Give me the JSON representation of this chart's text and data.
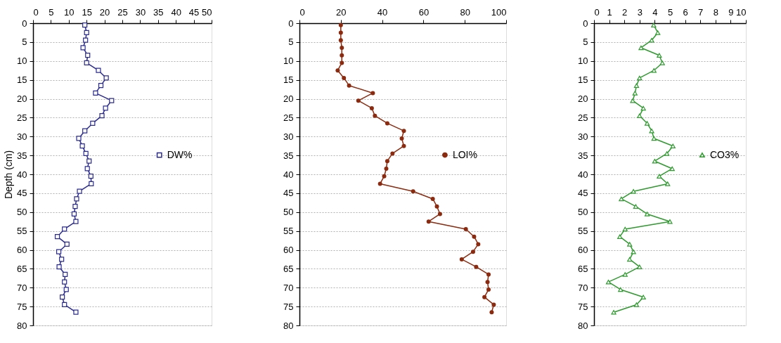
{
  "chart_data": [
    {
      "type": "line",
      "orientation": "horizontal",
      "ylabel": "Depth (cm)",
      "xlim": [
        0,
        50
      ],
      "xticks": [
        0,
        5,
        10,
        15,
        20,
        25,
        30,
        35,
        40,
        45,
        50
      ],
      "ylim": [
        80,
        0
      ],
      "yticks": [
        0,
        5,
        10,
        15,
        20,
        25,
        30,
        35,
        40,
        45,
        50,
        55,
        60,
        65,
        70,
        75,
        80
      ],
      "grid": "y",
      "legend": "right",
      "marker": "square",
      "line_style": "solid",
      "x": [
        0.5,
        2.5,
        4.5,
        6.5,
        8.5,
        10.5,
        12.5,
        14.5,
        16.5,
        18.5,
        20.5,
        22.5,
        24.5,
        26.5,
        28.5,
        30.5,
        32.5,
        34.5,
        36.5,
        38.5,
        40.5,
        42.5,
        44.5,
        46.5,
        48.5,
        50.5,
        52.5,
        54.5,
        56.5,
        58.5,
        60.5,
        62.5,
        64.5,
        66.5,
        68.5,
        70.5,
        72.5,
        74.5,
        76.5
      ],
      "series": [
        {
          "name": "DW%",
          "color": "#2b2b8f",
          "values": [
            14.5,
            15,
            14.7,
            14,
            15.3,
            15,
            18.3,
            20.5,
            19,
            17.5,
            22,
            20.3,
            19.3,
            16.7,
            14.5,
            12.8,
            13.8,
            14.8,
            15.7,
            15.2,
            16.2,
            16.3,
            13,
            12.2,
            11.8,
            11.5,
            12,
            8.8,
            6.8,
            9.5,
            7.2,
            8,
            7.3,
            9,
            8.8,
            9.3,
            8.2,
            8.8,
            12
          ]
        }
      ]
    },
    {
      "type": "line",
      "orientation": "horizontal",
      "xlim": [
        0,
        100
      ],
      "xticks": [
        0,
        20,
        40,
        60,
        80,
        100
      ],
      "ylim": [
        80,
        0
      ],
      "yticks": [
        0,
        5,
        10,
        15,
        20,
        25,
        30,
        35,
        40,
        45,
        50,
        55,
        60,
        65,
        70,
        75,
        80
      ],
      "grid": "y",
      "legend": "right",
      "marker": "circle",
      "line_style": "solid",
      "x": [
        0.5,
        2.5,
        4.5,
        6.5,
        8.5,
        10.5,
        12.5,
        14.5,
        16.5,
        18.5,
        20.5,
        22.5,
        24.5,
        26.5,
        28.5,
        30.5,
        32.5,
        34.5,
        36.5,
        38.5,
        40.5,
        42.5,
        44.5,
        46.5,
        48.5,
        50.5,
        52.5,
        54.5,
        56.5,
        58.5,
        60.5,
        62.5,
        64.5,
        66.5,
        68.5,
        70.5,
        72.5,
        74.5,
        76.5
      ],
      "series": [
        {
          "name": "LOI%",
          "color": "#8b2a0e",
          "values": [
            20,
            20,
            20,
            20.5,
            20.5,
            20.5,
            18.5,
            21.5,
            24,
            35.5,
            28.5,
            35,
            36.5,
            42.5,
            50.5,
            49.5,
            50.5,
            45,
            42.5,
            42,
            41,
            39,
            55,
            64.5,
            66.5,
            68,
            62.5,
            80.5,
            84.5,
            86.5,
            84,
            78.5,
            85.5,
            91.5,
            91,
            91.5,
            89.5,
            94,
            93
          ]
        }
      ]
    },
    {
      "type": "line",
      "orientation": "horizontal",
      "xlim": [
        0,
        10
      ],
      "xticks": [
        0,
        1,
        2,
        3,
        4,
        5,
        6,
        7,
        8,
        9,
        10
      ],
      "ylim": [
        80,
        0
      ],
      "yticks": [
        0,
        5,
        10,
        15,
        20,
        25,
        30,
        35,
        40,
        45,
        50,
        55,
        60,
        65,
        70,
        75,
        80
      ],
      "grid": "y",
      "legend": "right",
      "marker": "triangle",
      "line_style": "solid",
      "x": [
        0.5,
        2.5,
        4.5,
        6.5,
        8.5,
        10.5,
        12.5,
        14.5,
        16.5,
        18.5,
        20.5,
        22.5,
        24.5,
        26.5,
        28.5,
        30.5,
        32.5,
        34.5,
        36.5,
        38.5,
        40.5,
        42.5,
        44.5,
        46.5,
        48.5,
        50.5,
        52.5,
        54.5,
        56.5,
        58.5,
        60.5,
        62.5,
        64.5,
        66.5,
        68.5,
        70.5,
        72.5,
        74.5,
        76.5
      ],
      "series": [
        {
          "name": "CO3%",
          "color": "#2e9a2e",
          "values": [
            3.93,
            4.2,
            3.8,
            3.1,
            4.3,
            4.5,
            3.95,
            3.0,
            2.8,
            2.7,
            2.55,
            3.25,
            3.0,
            3.5,
            3.8,
            3.95,
            5.2,
            4.8,
            4.0,
            5.15,
            4.3,
            4.85,
            2.6,
            1.8,
            2.75,
            3.5,
            5.0,
            2.05,
            1.7,
            2.35,
            2.6,
            2.35,
            3.0,
            2.05,
            0.95,
            1.75,
            3.25,
            2.8,
            1.3
          ]
        }
      ]
    }
  ]
}
